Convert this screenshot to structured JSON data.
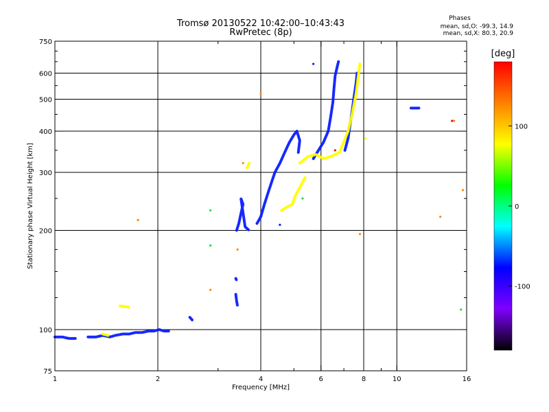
{
  "header": {
    "title": "Tromsø 20130522 10:42:00–10:43:43",
    "subtitle": "RwPretec (8p)"
  },
  "stats": {
    "heading": "Phases",
    "line_o": "mean, sd,O: -99.3, 14.9",
    "line_x": "mean, sd,X:  80.3, 20.9"
  },
  "colorbar": {
    "title": "[deg]",
    "ticks": [
      {
        "value": 100,
        "label": "100"
      },
      {
        "value": 0,
        "label": "0"
      },
      {
        "value": -100,
        "label": "-100"
      }
    ],
    "range": [
      -180,
      180
    ],
    "stops": [
      "#000000",
      "#7f00ff",
      "#0000ff",
      "#00ffff",
      "#00ff00",
      "#ffff00",
      "#ff8000",
      "#ff0000"
    ]
  },
  "chart_data": {
    "type": "scatter",
    "xlabel": "Frequency [MHz]",
    "ylabel": "Stationary phase Virtual Height [km]",
    "xscale": "log",
    "yscale": "log",
    "xlim": [
      1,
      16
    ],
    "ylim": [
      75,
      750
    ],
    "x_ticks": [
      1,
      2,
      4,
      6,
      8,
      10,
      16
    ],
    "x_tick_labels": [
      "1",
      "2",
      "4",
      "6",
      "8",
      "10",
      "16"
    ],
    "y_ticks": [
      75,
      100,
      200,
      300,
      400,
      500,
      600,
      750
    ],
    "y_tick_labels": [
      "75",
      "100",
      "200",
      "300",
      "400",
      "500",
      "600",
      "750"
    ],
    "x_gridlines": [
      2,
      4,
      6,
      8,
      10
    ],
    "y_gridlines": [
      100,
      200,
      300,
      400,
      500,
      600
    ],
    "series": [
      {
        "color": "#0a1eff",
        "traces": [
          [
            [
              1.0,
              95
            ],
            [
              1.05,
              95
            ],
            [
              1.1,
              94
            ],
            [
              1.15,
              94
            ]
          ],
          [
            [
              1.25,
              95
            ],
            [
              1.32,
              95
            ],
            [
              1.38,
              96
            ],
            [
              1.45,
              95
            ],
            [
              1.5,
              96
            ],
            [
              1.58,
              97
            ],
            [
              1.65,
              97
            ],
            [
              1.72,
              98
            ],
            [
              1.8,
              98
            ],
            [
              1.88,
              99
            ],
            [
              1.95,
              99
            ],
            [
              2.02,
              100
            ],
            [
              2.08,
              99
            ],
            [
              2.15,
              99
            ]
          ],
          [
            [
              2.48,
              109
            ],
            [
              2.52,
              107
            ]
          ],
          [
            [
              3.38,
              128
            ],
            [
              3.4,
              122
            ],
            [
              3.42,
              118
            ]
          ],
          [
            [
              3.38,
              143
            ],
            [
              3.4,
              141
            ]
          ],
          [
            [
              3.4,
              200
            ],
            [
              3.45,
              210
            ],
            [
              3.5,
              225
            ],
            [
              3.55,
              240
            ],
            [
              3.5,
              250
            ],
            [
              3.6,
              205
            ],
            [
              3.7,
              200
            ]
          ],
          [
            [
              3.9,
              210
            ],
            [
              4.0,
              220
            ],
            [
              4.1,
              240
            ],
            [
              4.2,
              260
            ],
            [
              4.3,
              280
            ],
            [
              4.4,
              300
            ],
            [
              4.55,
              320
            ],
            [
              4.7,
              345
            ],
            [
              4.85,
              370
            ],
            [
              5.0,
              390
            ],
            [
              5.1,
              400
            ],
            [
              5.2,
              375
            ],
            [
              5.15,
              345
            ]
          ],
          [
            [
              5.7,
              330
            ],
            [
              5.9,
              350
            ],
            [
              6.1,
              370
            ],
            [
              6.3,
              400
            ],
            [
              6.4,
              440
            ],
            [
              6.5,
              490
            ],
            [
              6.55,
              540
            ],
            [
              6.6,
              590
            ],
            [
              6.7,
              630
            ],
            [
              6.75,
              650
            ]
          ],
          [
            [
              7.05,
              350
            ],
            [
              7.2,
              380
            ],
            [
              7.3,
              420
            ],
            [
              7.4,
              460
            ],
            [
              7.5,
              510
            ],
            [
              7.6,
              560
            ],
            [
              7.65,
              600
            ]
          ],
          [
            [
              5.7,
              640
            ]
          ],
          [
            [
              11.0,
              470
            ],
            [
              11.6,
              470
            ]
          ],
          [
            [
              4.55,
              208
            ]
          ]
        ]
      },
      {
        "color": "#ffff00",
        "traces": [
          [
            [
              1.38,
              97
            ],
            [
              1.43,
              96
            ]
          ],
          [
            [
              4.6,
              230
            ],
            [
              4.75,
              235
            ],
            [
              4.95,
              240
            ],
            [
              5.05,
              255
            ],
            [
              5.2,
              270
            ],
            [
              5.4,
              290
            ]
          ],
          [
            [
              5.2,
              320
            ],
            [
              5.5,
              335
            ],
            [
              5.8,
              340
            ],
            [
              6.1,
              330
            ],
            [
              6.4,
              335
            ],
            [
              6.8,
              345
            ],
            [
              7.2,
              400
            ],
            [
              7.4,
              450
            ],
            [
              7.6,
              520
            ],
            [
              7.7,
              580
            ],
            [
              7.8,
              640
            ]
          ],
          [
            [
              8.1,
              380
            ]
          ],
          [
            [
              3.65,
              310
            ],
            [
              3.7,
              320
            ]
          ],
          [
            [
              1.55,
              118
            ],
            [
              1.65,
              117
            ]
          ]
        ]
      },
      {
        "color": "#ff8800",
        "traces": [
          [
            [
              1.75,
              215
            ]
          ],
          [
            [
              2.85,
              132
            ]
          ],
          [
            [
              3.42,
              175
            ]
          ],
          [
            [
              3.55,
              320
            ]
          ],
          [
            [
              4.0,
              520
            ]
          ],
          [
            [
              13.4,
              220
            ]
          ],
          [
            [
              14.7,
              430
            ]
          ],
          [
            [
              15.6,
              265
            ]
          ],
          [
            [
              7.8,
              195
            ]
          ]
        ]
      },
      {
        "color": "#22dd44",
        "traces": [
          [
            [
              2.85,
              230
            ]
          ],
          [
            [
              2.85,
              180
            ]
          ],
          [
            [
              15.4,
              115
            ]
          ],
          [
            [
              5.3,
              250
            ]
          ]
        ]
      },
      {
        "color": "#ee1111",
        "traces": [
          [
            [
              14.5,
              430
            ]
          ],
          [
            [
              6.6,
              350
            ]
          ]
        ]
      }
    ]
  }
}
